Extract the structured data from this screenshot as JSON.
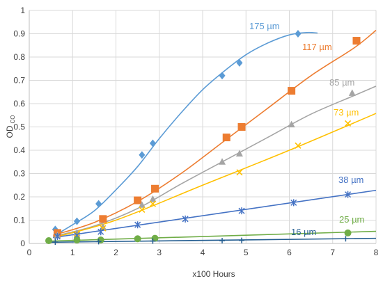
{
  "chart_data": {
    "type": "scatter",
    "xlabel": "x100 Hours",
    "ylabel_main": "OD",
    "ylabel_sub": "CO",
    "xlim": [
      0,
      8
    ],
    "ylim": [
      0,
      1
    ],
    "xticks": [
      0,
      1,
      2,
      3,
      4,
      5,
      6,
      7,
      8
    ],
    "yticks": [
      0,
      0.1,
      0.2,
      0.3,
      0.4,
      0.5,
      0.6,
      0.7,
      0.8,
      0.9,
      1
    ],
    "x_tick_labels": [
      "0",
      "1",
      "2",
      "3",
      "4",
      "5",
      "6",
      "7",
      "8"
    ],
    "y_tick_labels": [
      "0",
      "0.1",
      "0.2",
      "0.3",
      "0.4",
      "0.5",
      "0.6",
      "0.7",
      "0.8",
      "0.9",
      "1"
    ],
    "grid": true,
    "series": [
      {
        "name": "175 µm",
        "color": "#5b9bd5",
        "marker": "diamond",
        "points": [
          [
            0.6,
            0.06
          ],
          [
            1.1,
            0.095
          ],
          [
            1.6,
            0.17
          ],
          [
            2.6,
            0.38
          ],
          [
            2.85,
            0.43
          ],
          [
            4.45,
            0.72
          ],
          [
            4.85,
            0.775
          ],
          [
            6.2,
            0.9
          ]
        ],
        "fit": [
          [
            0.55,
            0.03
          ],
          [
            1.0,
            0.08
          ],
          [
            1.5,
            0.14
          ],
          [
            2.0,
            0.23
          ],
          [
            2.5,
            0.33
          ],
          [
            3.0,
            0.45
          ],
          [
            3.5,
            0.56
          ],
          [
            4.0,
            0.66
          ],
          [
            4.5,
            0.74
          ],
          [
            5.0,
            0.81
          ],
          [
            5.5,
            0.86
          ],
          [
            6.0,
            0.895
          ],
          [
            6.4,
            0.905
          ],
          [
            6.65,
            0.903
          ]
        ]
      },
      {
        "name": "117 µm",
        "color": "#ed7d31",
        "marker": "square",
        "points": [
          [
            0.65,
            0.045
          ],
          [
            1.7,
            0.105
          ],
          [
            2.5,
            0.185
          ],
          [
            2.9,
            0.235
          ],
          [
            4.55,
            0.455
          ],
          [
            4.9,
            0.5
          ],
          [
            6.05,
            0.655
          ],
          [
            7.55,
            0.87
          ]
        ],
        "fit": [
          [
            0.55,
            0.035
          ],
          [
            1.5,
            0.09
          ],
          [
            2.5,
            0.18
          ],
          [
            3.5,
            0.3
          ],
          [
            4.5,
            0.44
          ],
          [
            5.5,
            0.58
          ],
          [
            6.5,
            0.72
          ],
          [
            7.5,
            0.84
          ],
          [
            8.0,
            0.915
          ]
        ]
      },
      {
        "name": "85 µm",
        "color": "#a5a5a5",
        "marker": "triangle",
        "points": [
          [
            0.65,
            0.035
          ],
          [
            1.1,
            0.045
          ],
          [
            1.7,
            0.07
          ],
          [
            2.6,
            0.165
          ],
          [
            2.85,
            0.19
          ],
          [
            4.45,
            0.35
          ],
          [
            4.85,
            0.385
          ],
          [
            6.05,
            0.51
          ],
          [
            7.45,
            0.645
          ]
        ],
        "fit": [
          [
            0.55,
            0.03
          ],
          [
            1.5,
            0.075
          ],
          [
            2.5,
            0.15
          ],
          [
            3.5,
            0.255
          ],
          [
            4.5,
            0.355
          ],
          [
            5.5,
            0.455
          ],
          [
            6.5,
            0.555
          ],
          [
            7.5,
            0.635
          ],
          [
            8.0,
            0.675
          ]
        ]
      },
      {
        "name": "73 µm",
        "color": "#ffc000",
        "marker": "x",
        "points": [
          [
            0.65,
            0.03
          ],
          [
            1.1,
            0.04
          ],
          [
            1.7,
            0.065
          ],
          [
            2.6,
            0.145
          ],
          [
            2.85,
            0.17
          ],
          [
            4.85,
            0.305
          ],
          [
            6.2,
            0.42
          ],
          [
            7.35,
            0.515
          ]
        ],
        "fit": [
          [
            0.55,
            0.025
          ],
          [
            2.0,
            0.1
          ],
          [
            4.0,
            0.25
          ],
          [
            6.0,
            0.4
          ],
          [
            8.0,
            0.558
          ]
        ]
      },
      {
        "name": "38 µm",
        "color": "#4472c4",
        "marker": "asterisk",
        "points": [
          [
            0.65,
            0.03
          ],
          [
            1.1,
            0.035
          ],
          [
            1.65,
            0.05
          ],
          [
            2.5,
            0.08
          ],
          [
            3.6,
            0.105
          ],
          [
            4.9,
            0.14
          ],
          [
            6.1,
            0.175
          ],
          [
            7.35,
            0.21
          ]
        ],
        "fit": [
          [
            0.55,
            0.025
          ],
          [
            8.0,
            0.228
          ]
        ]
      },
      {
        "name": "25 µm",
        "color": "#70ad47",
        "marker": "circle",
        "points": [
          [
            0.45,
            0.012
          ],
          [
            1.1,
            0.015
          ],
          [
            1.65,
            0.015
          ],
          [
            2.5,
            0.02
          ],
          [
            2.9,
            0.022
          ],
          [
            7.35,
            0.045
          ]
        ],
        "fit": [
          [
            0.45,
            0.01
          ],
          [
            8.0,
            0.052
          ]
        ]
      },
      {
        "name": "16 µm",
        "color": "#255e91",
        "marker": "plus",
        "points": [
          [
            0.6,
            0.006
          ],
          [
            1.6,
            0.008
          ],
          [
            2.85,
            0.01
          ],
          [
            4.45,
            0.012
          ],
          [
            4.9,
            0.013
          ],
          [
            7.3,
            0.02
          ]
        ],
        "fit": [
          [
            0.45,
            0.005
          ],
          [
            8.0,
            0.022
          ]
        ]
      }
    ]
  }
}
